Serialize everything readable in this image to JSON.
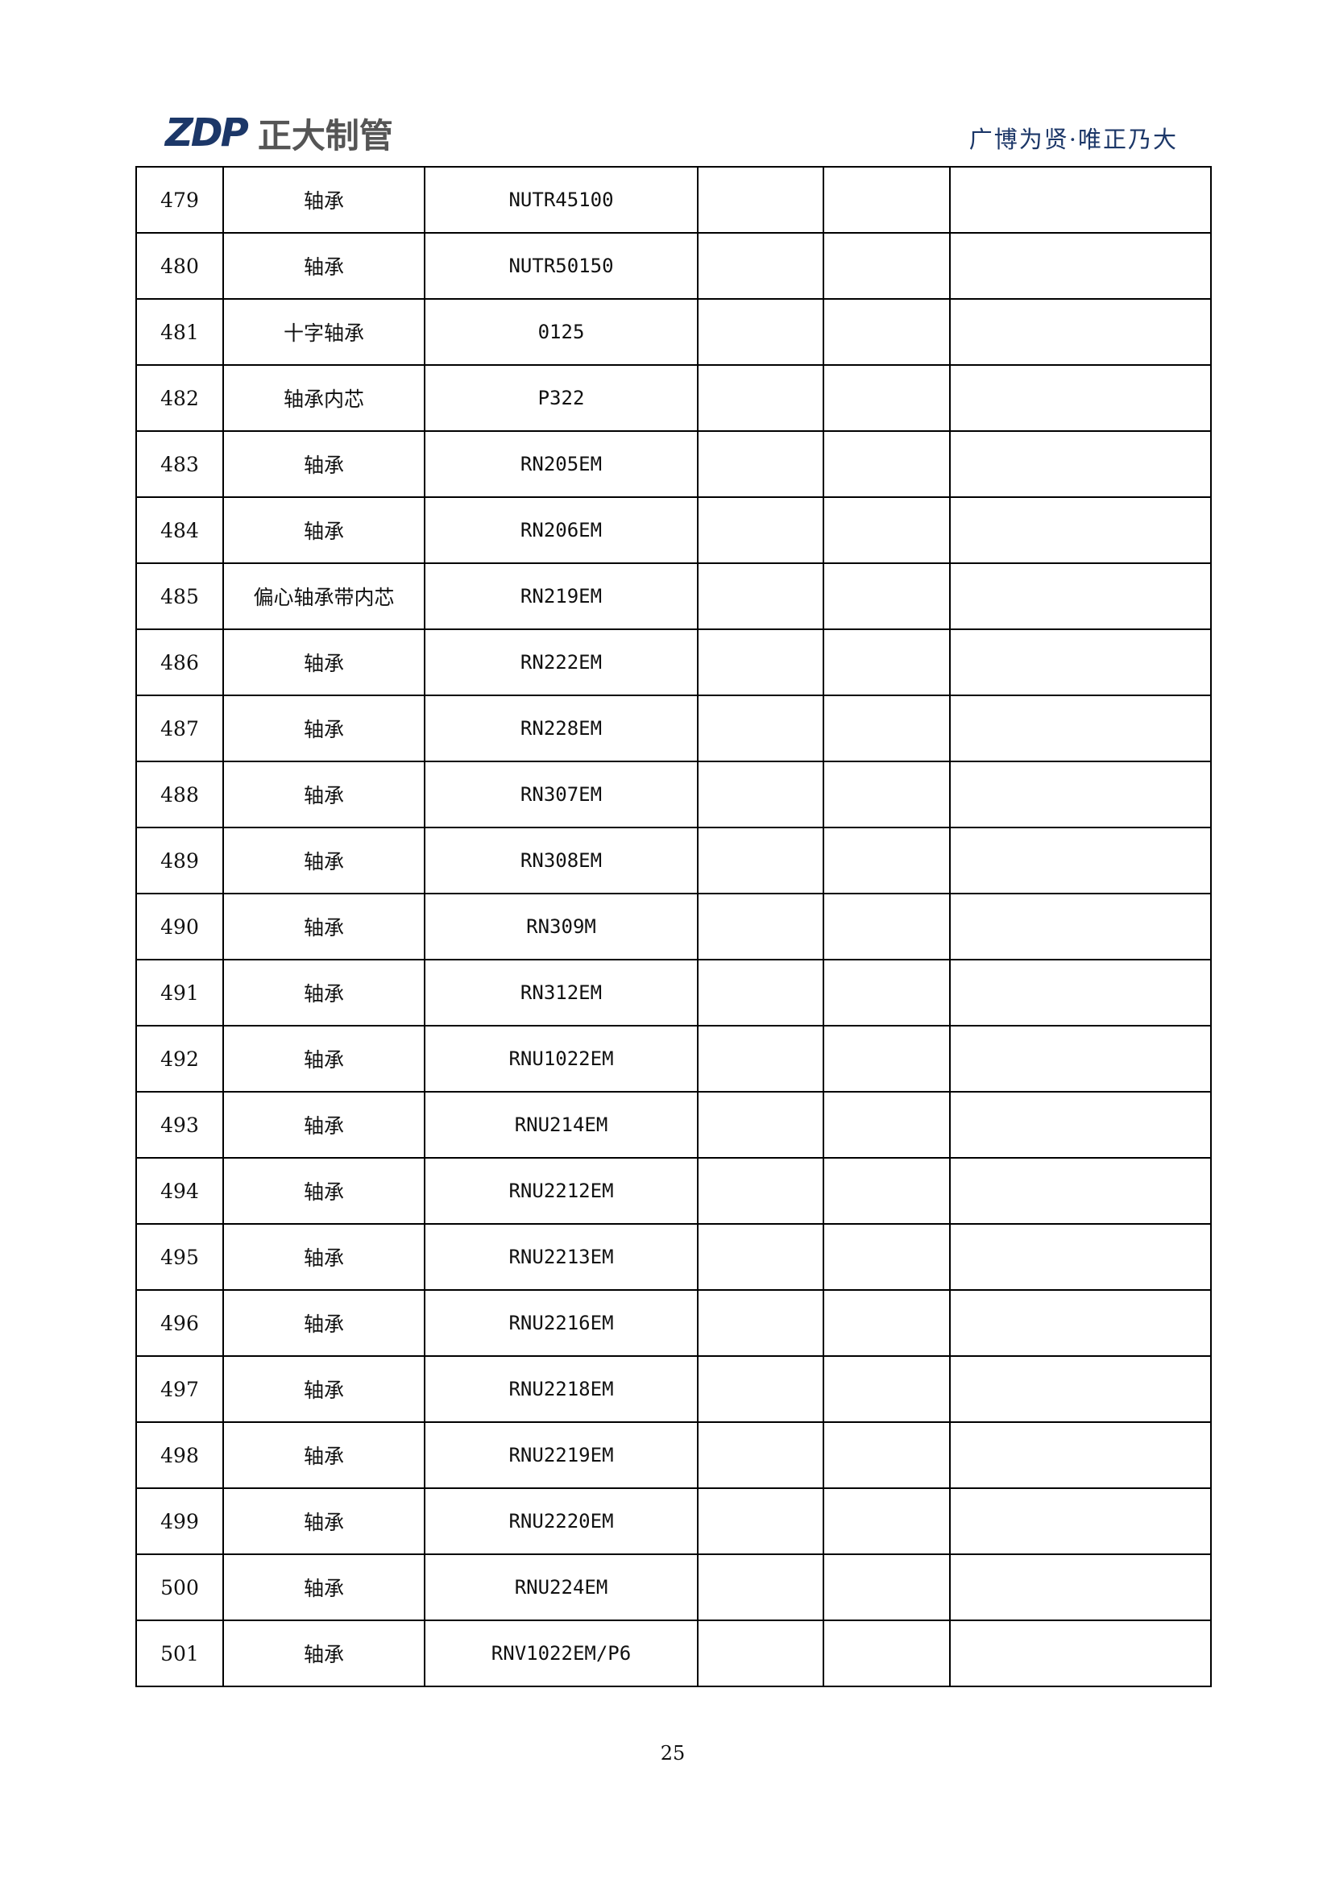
{
  "header": {
    "logo_mark": "ZDP",
    "logo_text": "正大制管",
    "slogan": "广博为贤·唯正乃大"
  },
  "rows": [
    [
      "479",
      "轴承",
      "NUTR45100"
    ],
    [
      "480",
      "轴承",
      "NUTR50150"
    ],
    [
      "481",
      "十字轴承",
      "0125"
    ],
    [
      "482",
      "轴承内芯",
      "P322"
    ],
    [
      "483",
      "轴承",
      "RN205EM"
    ],
    [
      "484",
      "轴承",
      "RN206EM"
    ],
    [
      "485",
      "偏心轴承带内芯",
      "RN219EM"
    ],
    [
      "486",
      "轴承",
      "RN222EM"
    ],
    [
      "487",
      "轴承",
      "RN228EM"
    ],
    [
      "488",
      "轴承",
      "RN307EM"
    ],
    [
      "489",
      "轴承",
      "RN308EM"
    ],
    [
      "490",
      "轴承",
      "RN309M"
    ],
    [
      "491",
      "轴承",
      "RN312EM"
    ],
    [
      "492",
      "轴承",
      "RNU1022EM"
    ],
    [
      "493",
      "轴承",
      "RNU214EM"
    ],
    [
      "494",
      "轴承",
      "RNU2212EM"
    ],
    [
      "495",
      "轴承",
      "RNU2213EM"
    ],
    [
      "496",
      "轴承",
      "RNU2216EM"
    ],
    [
      "497",
      "轴承",
      "RNU2218EM"
    ],
    [
      "498",
      "轴承",
      "RNU2219EM"
    ],
    [
      "499",
      "轴承",
      "RNU2220EM"
    ],
    [
      "500",
      "轴承",
      "RNU224EM"
    ],
    [
      "501",
      "轴承",
      "RNV1022EM/P6"
    ]
  ],
  "page_number": "25"
}
